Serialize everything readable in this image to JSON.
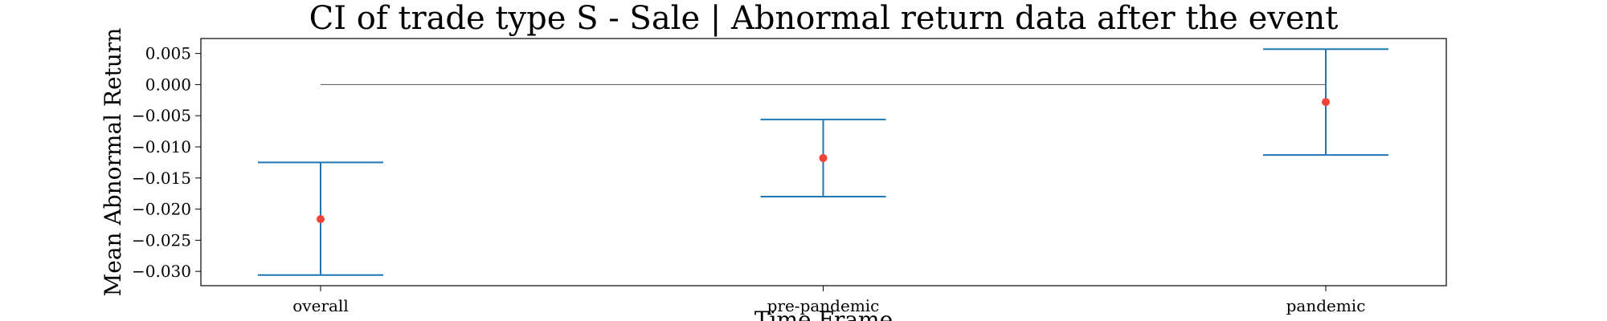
{
  "chart_data": {
    "type": "errorbar",
    "title": "CI of trade type  S - Sale | Abnormal return data after the event",
    "xlabel": "Time Frame",
    "ylabel": "Mean Abnormal Return",
    "categories": [
      "overall",
      "pre-pandemic",
      "pandemic"
    ],
    "series": [
      {
        "means": [
          -0.0216,
          -0.0118,
          -0.0028
        ],
        "ci_low": [
          -0.0306,
          -0.018,
          -0.0113
        ],
        "ci_high": [
          -0.0125,
          -0.0056,
          0.0057
        ]
      }
    ],
    "reference_line": 0.0,
    "ylim": [
      -0.0323,
      0.0074
    ],
    "yticks": [
      0.005,
      0.0,
      -0.005,
      -0.01,
      -0.015,
      -0.02,
      -0.025,
      -0.03
    ],
    "ytick_labels": [
      "0.005",
      "0.000",
      "−0.005",
      "−0.010",
      "−0.015",
      "−0.020",
      "−0.025",
      "−0.030"
    ],
    "colors": {
      "errorbar": "#1f77b4",
      "mean_point": "#f44336",
      "reference": "#555555"
    },
    "grid": false
  }
}
